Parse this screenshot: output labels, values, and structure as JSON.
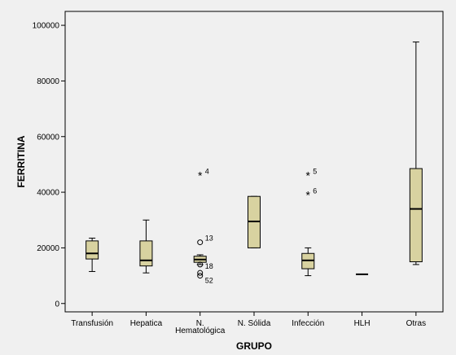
{
  "chart_data": {
    "type": "boxplot",
    "xlabel": "GRUPO",
    "ylabel": "FERRITINA",
    "ylim": [
      -3000,
      105000
    ],
    "yticks": [
      0,
      20000,
      40000,
      60000,
      80000,
      100000
    ],
    "ytick_labels": [
      "0",
      "20000",
      "40000",
      "60000",
      "80000",
      "100000"
    ],
    "grid": false,
    "box_color": "#d8d2a0",
    "categories": [
      {
        "label": "Transfusión",
        "label2": "",
        "min": 11500,
        "q1": 16000,
        "median": 18000,
        "q3": 22500,
        "max": 23500,
        "outliers": []
      },
      {
        "label": "Hepatica",
        "label2": "",
        "min": 11000,
        "q1": 13500,
        "median": 15500,
        "q3": 22500,
        "max": 30000,
        "outliers": []
      },
      {
        "label": "N.",
        "label2": "Hematológica",
        "min": 14000,
        "q1": 14800,
        "median": 15800,
        "q3": 17000,
        "max": 17500,
        "outliers": [
          {
            "value": 46000,
            "symbol": "*",
            "id": "4"
          },
          {
            "value": 22000,
            "symbol": "o",
            "id": "13"
          },
          {
            "value": 14000,
            "symbol": "o",
            "id": "18"
          },
          {
            "value": 11000,
            "symbol": "o",
            "id": ""
          },
          {
            "value": 10000,
            "symbol": "o",
            "id": "52"
          }
        ]
      },
      {
        "label": "N. Sólida",
        "label2": "",
        "min": 20000,
        "q1": 20000,
        "median": 29500,
        "q3": 38500,
        "max": 38500,
        "outliers": []
      },
      {
        "label": "Infección",
        "label2": "",
        "min": 10000,
        "q1": 12500,
        "median": 15500,
        "q3": 18000,
        "max": 20000,
        "outliers": [
          {
            "value": 46000,
            "symbol": "*",
            "id": "5"
          },
          {
            "value": 39000,
            "symbol": "*",
            "id": "6"
          }
        ]
      },
      {
        "label": "HLH",
        "label2": "",
        "min": 10500,
        "q1": 10500,
        "median": 10500,
        "q3": 10500,
        "max": 10500,
        "outliers": []
      },
      {
        "label": "Otras",
        "label2": "",
        "min": 14000,
        "q1": 15000,
        "median": 34000,
        "q3": 48500,
        "max": 94000,
        "outliers": []
      }
    ]
  }
}
